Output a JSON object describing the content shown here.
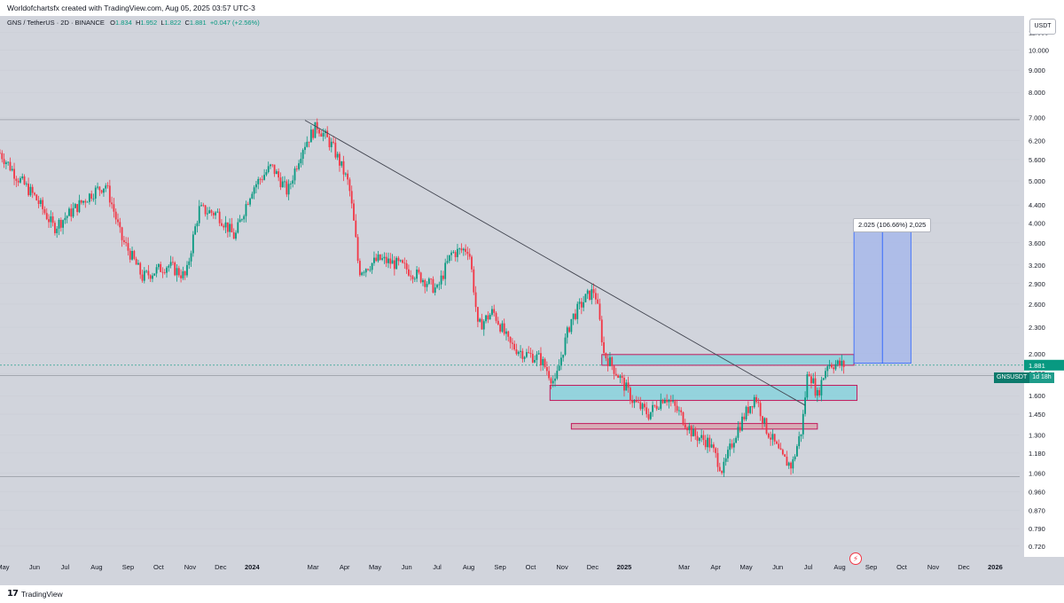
{
  "header": {
    "attribution": "Worldofchartsfx created with TradingView.com, Aug 05, 2025 03:57 UTC-3"
  },
  "symbol_bar": {
    "title": "GNS / TetherUS · 2D · BINANCE",
    "open_label": "O",
    "open": "1.834",
    "high_label": "H",
    "high": "1.952",
    "low_label": "L",
    "low": "1.822",
    "close_label": "C",
    "close": "1.881",
    "change": "+0.047 (+2.56%)"
  },
  "currency_button": "USDT",
  "price_badge": {
    "symbol": "GNSUSDT",
    "countdown": "1d 18h",
    "price": 1.881
  },
  "measure_label": "2.025 (106.66%) 2,025",
  "footer": {
    "brand": "TradingView",
    "logo_mark": "17"
  },
  "icons": {
    "logo": "tradingview-logo-icon",
    "alert": "lightning-alert-icon"
  },
  "colors": {
    "bull": "#089981",
    "bear": "#f23645",
    "zone_fill": "#7fd3dd",
    "zone_border": "#c2185b",
    "measure_fill": "#9fb4ec",
    "measure_line": "#2962ff",
    "trendline": "#434651",
    "background": "#d1d4dc"
  },
  "chart_data": {
    "type": "candlestick",
    "title": "GNS / TetherUS · 2D · BINANCE",
    "y_scale": "log",
    "ylim": [
      0.68,
      12.0
    ],
    "y_ticks": [
      "11.000",
      "10.000",
      "9.000",
      "8.000",
      "7.000",
      "6.200",
      "5.600",
      "5.000",
      "4.400",
      "4.000",
      "3.600",
      "3.200",
      "2.900",
      "2.600",
      "2.300",
      "2.000",
      "1.800",
      "1.600",
      "1.450",
      "1.300",
      "1.180",
      "1.060",
      "0.960",
      "0.870",
      "0.790",
      "0.720"
    ],
    "x_ticks": [
      "May",
      "Jun",
      "Jul",
      "Aug",
      "Sep",
      "Oct",
      "Nov",
      "Dec",
      "2024",
      "Mar",
      "Apr",
      "May",
      "Jun",
      "Jul",
      "Aug",
      "Sep",
      "Oct",
      "Nov",
      "Dec",
      "2025",
      "Mar",
      "Apr",
      "May",
      "Jun",
      "Jul",
      "Aug",
      "Sep",
      "Oct",
      "Nov",
      "Dec",
      "2026"
    ],
    "x_tick_dates": [
      "2023-05-01",
      "2023-06-01",
      "2023-07-01",
      "2023-08-01",
      "2023-09-01",
      "2023-10-01",
      "2023-11-01",
      "2023-12-01",
      "2024-01-01",
      "2024-03-01",
      "2024-04-01",
      "2024-05-01",
      "2024-06-01",
      "2024-07-01",
      "2024-08-01",
      "2024-09-01",
      "2024-10-01",
      "2024-11-01",
      "2024-12-01",
      "2025-01-01",
      "2025-03-01",
      "2025-04-01",
      "2025-05-01",
      "2025-06-01",
      "2025-07-01",
      "2025-08-01",
      "2025-09-01",
      "2025-10-01",
      "2025-11-01",
      "2025-12-01",
      "2026-01-01"
    ],
    "x_range": [
      "2023-04-28",
      "2026-01-25"
    ],
    "price_keypoints": [
      [
        "2023-04-28",
        5.8
      ],
      [
        "2023-05-15",
        5.1
      ],
      [
        "2023-06-01",
        4.6
      ],
      [
        "2023-06-20",
        3.9
      ],
      [
        "2023-07-10",
        4.3
      ],
      [
        "2023-07-28",
        4.7
      ],
      [
        "2023-08-10",
        4.9
      ],
      [
        "2023-08-25",
        3.7
      ],
      [
        "2023-09-15",
        3.0
      ],
      [
        "2023-10-10",
        3.2
      ],
      [
        "2023-10-28",
        3.0
      ],
      [
        "2023-11-10",
        4.3
      ],
      [
        "2023-11-28",
        4.2
      ],
      [
        "2023-12-15",
        3.7
      ],
      [
        "2024-01-01",
        4.8
      ],
      [
        "2024-01-20",
        5.4
      ],
      [
        "2024-02-05",
        4.7
      ],
      [
        "2024-02-20",
        6.0
      ],
      [
        "2024-03-05",
        6.7
      ],
      [
        "2024-03-20",
        6.0
      ],
      [
        "2024-04-05",
        4.9
      ],
      [
        "2024-04-15",
        3.1
      ],
      [
        "2024-05-05",
        3.3
      ],
      [
        "2024-05-25",
        3.2
      ],
      [
        "2024-06-15",
        3.0
      ],
      [
        "2024-07-01",
        2.8
      ],
      [
        "2024-07-15",
        3.4
      ],
      [
        "2024-08-01",
        3.5
      ],
      [
        "2024-08-10",
        2.3
      ],
      [
        "2024-08-25",
        2.5
      ],
      [
        "2024-09-10",
        2.1
      ],
      [
        "2024-09-25",
        2.0
      ],
      [
        "2024-10-10",
        1.95
      ],
      [
        "2024-10-25",
        1.7
      ],
      [
        "2024-11-10",
        2.4
      ],
      [
        "2024-11-25",
        2.7
      ],
      [
        "2024-12-03",
        2.8
      ],
      [
        "2024-12-12",
        2.0
      ],
      [
        "2024-12-25",
        1.8
      ],
      [
        "2025-01-10",
        1.55
      ],
      [
        "2025-01-25",
        1.45
      ],
      [
        "2025-02-10",
        1.6
      ],
      [
        "2025-02-25",
        1.45
      ],
      [
        "2025-03-10",
        1.3
      ],
      [
        "2025-03-25",
        1.25
      ],
      [
        "2025-04-08",
        1.07
      ],
      [
        "2025-04-20",
        1.3
      ],
      [
        "2025-05-10",
        1.6
      ],
      [
        "2025-05-20",
        1.35
      ],
      [
        "2025-06-05",
        1.15
      ],
      [
        "2025-06-15",
        1.1
      ],
      [
        "2025-06-25",
        1.35
      ],
      [
        "2025-07-01",
        1.85
      ],
      [
        "2025-07-10",
        1.6
      ],
      [
        "2025-07-20",
        1.9
      ],
      [
        "2025-08-05",
        1.88
      ]
    ],
    "trendline": [
      [
        "2024-02-22",
        6.9
      ],
      [
        "2025-06-28",
        1.52
      ]
    ],
    "zones": [
      {
        "from": "2024-12-10",
        "to": "2025-08-15",
        "low": 1.88,
        "high": 1.99,
        "fill": "#7fd3dd"
      },
      {
        "from": "2024-10-20",
        "to": "2025-08-18",
        "low": 1.56,
        "high": 1.69,
        "fill": "#7fd3dd"
      },
      {
        "from": "2024-11-10",
        "to": "2025-07-10",
        "low": 1.34,
        "high": 1.38,
        "fill": "#d8a0aa"
      }
    ],
    "horizontal_levels": [
      6.92,
      1.78,
      1.04
    ],
    "measure": {
      "from": "2025-08-15",
      "to": "2025-10-10",
      "low": 1.9,
      "high": 3.925,
      "change": "2.025 (106.66%) 2,025"
    }
  }
}
